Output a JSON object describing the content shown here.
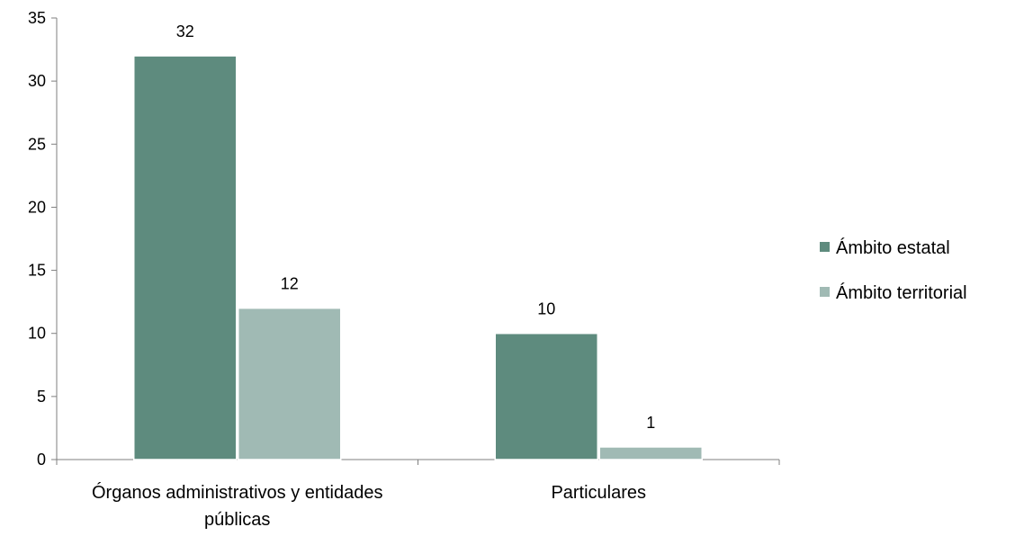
{
  "chart_data": {
    "type": "bar",
    "categories": [
      [
        "Órganos administrativos y entidades",
        "públicas"
      ],
      [
        "Particulares"
      ]
    ],
    "series": [
      {
        "name": "Ámbito estatal",
        "values": [
          32,
          10
        ],
        "color": "#5e8b7e"
      },
      {
        "name": "Ámbito territorial",
        "values": [
          12,
          1
        ],
        "color": "#a0bab4"
      }
    ],
    "ylim": [
      0,
      35
    ],
    "yticks": [
      0,
      5,
      10,
      15,
      20,
      25,
      30,
      35
    ],
    "data_labels": true,
    "grid": false,
    "legend_position": "right",
    "axis_color": "#7f7f7f"
  }
}
